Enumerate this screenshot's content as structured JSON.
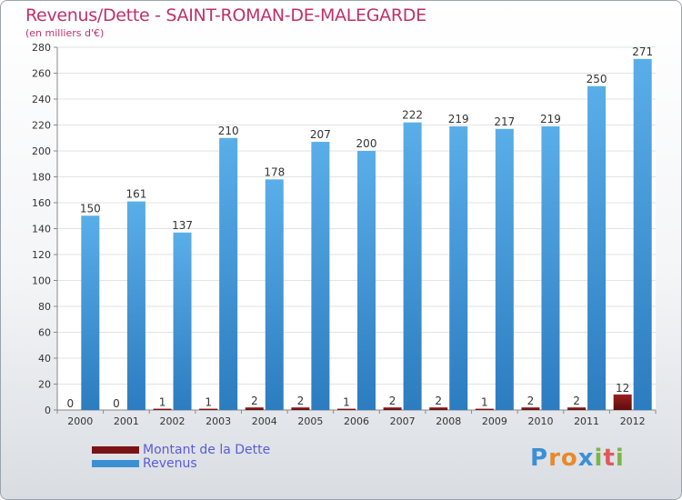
{
  "colors": {
    "revenus": "#3d8fd4",
    "dette": "#7a1414",
    "title": "#c0306b",
    "legend_text": "#5b5bd6"
  },
  "chart_data": {
    "type": "bar",
    "title": "Revenus/Dette - SAINT-ROMAN-DE-MALEGARDE",
    "subtitle": "(en milliers d'€)",
    "xlabel": "",
    "ylabel": "",
    "ylim": [
      0,
      280
    ],
    "yticks": [
      0,
      20,
      40,
      60,
      80,
      100,
      120,
      140,
      160,
      180,
      200,
      220,
      240,
      260,
      280
    ],
    "grid": true,
    "legend_position": "bottom-left",
    "categories": [
      "2000",
      "2001",
      "2002",
      "2003",
      "2004",
      "2005",
      "2006",
      "2007",
      "2008",
      "2009",
      "2010",
      "2011",
      "2012"
    ],
    "series": [
      {
        "name": "Montant de la Dette",
        "values": [
          0,
          0,
          1,
          1,
          2,
          2,
          1,
          2,
          2,
          1,
          2,
          2,
          12
        ]
      },
      {
        "name": "Revenus",
        "values": [
          150,
          161,
          137,
          210,
          178,
          207,
          200,
          222,
          219,
          217,
          219,
          250,
          271
        ]
      }
    ]
  },
  "logo": {
    "letters": [
      "P",
      "r",
      "o",
      "x",
      "i",
      "t",
      "i"
    ]
  }
}
